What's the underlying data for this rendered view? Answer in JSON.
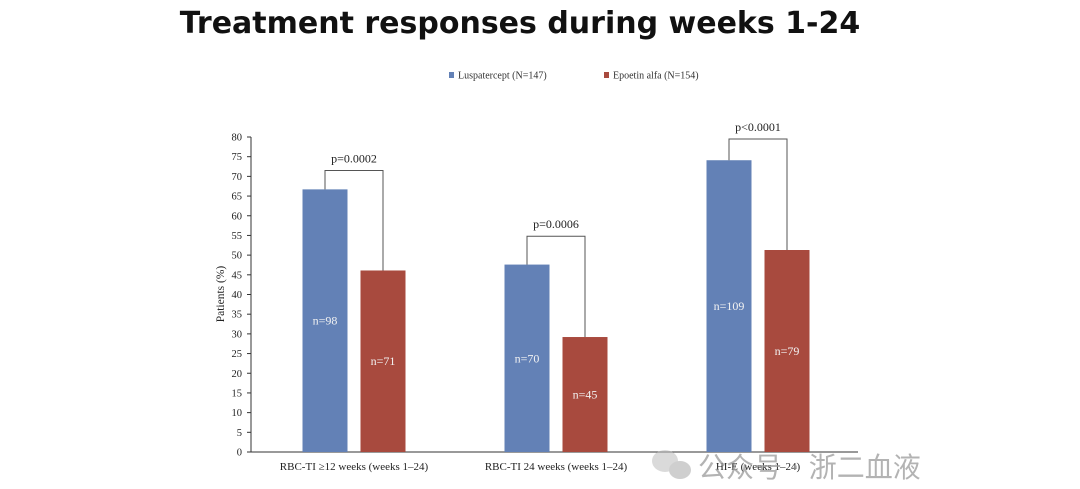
{
  "title": "Treatment responses during weeks 1-24",
  "chart_data": {
    "type": "bar",
    "title": "Treatment responses during weeks 1-24",
    "xlabel": "",
    "ylabel": "Patients (%)",
    "ylim": [
      0,
      80
    ],
    "yticks": [
      0,
      5,
      10,
      15,
      20,
      25,
      30,
      35,
      40,
      45,
      50,
      55,
      60,
      65,
      70,
      75,
      80
    ],
    "grid": false,
    "legend_position": "top-center",
    "categories": [
      "RBC-TI ≥12 weeks (weeks 1–24)",
      "RBC-TI 24 weeks (weeks 1–24)",
      "HI-E (weeks 1–24)"
    ],
    "series": [
      {
        "name": "Luspatercept (N=147)",
        "color": "#6381b6",
        "values": [
          66.7,
          47.6,
          74.1
        ],
        "labels": [
          "n=98",
          "n=70",
          "n=109"
        ]
      },
      {
        "name": "Epoetin alfa (N=154)",
        "color": "#a84a3e",
        "values": [
          46.1,
          29.2,
          51.3
        ],
        "labels": [
          "n=71",
          "n=45",
          "n=79"
        ]
      }
    ],
    "annotations": [
      {
        "category": 0,
        "text": "p=0.0002",
        "bracket_top": 71.5
      },
      {
        "category": 1,
        "text": "p=0.0006",
        "bracket_top": 54.8
      },
      {
        "category": 2,
        "text": "p<0.0001",
        "bracket_top": 79.5
      }
    ]
  },
  "watermark": {
    "text": "公众号 · 浙二血液",
    "icon": "wechat-icon"
  }
}
